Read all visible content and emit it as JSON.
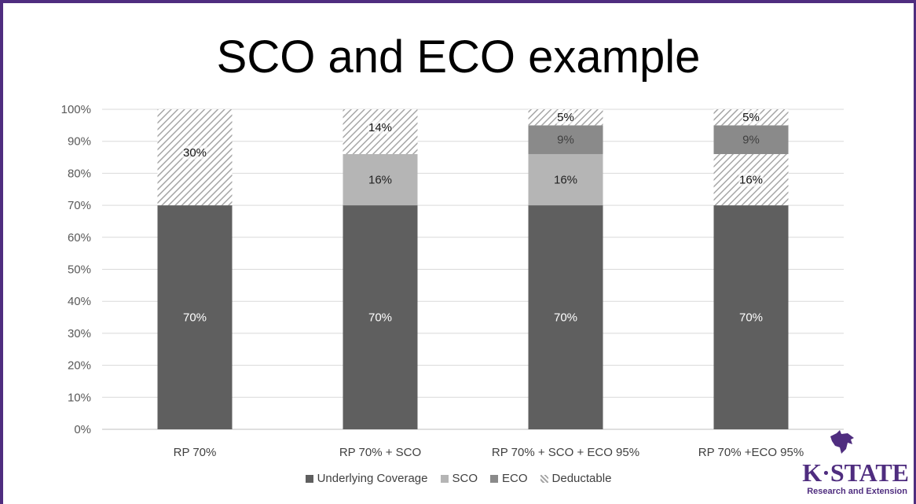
{
  "title": "SCO and ECO example",
  "colors": {
    "underlying": "#5f5f5f",
    "sco": "#b5b5b5",
    "eco": "#8a8a8a",
    "deductable_stripe": "#a6a6a6",
    "brand": "#4f2d7f"
  },
  "chart_data": {
    "type": "bar",
    "stacked": true,
    "categories": [
      "RP 70%",
      "RP 70% + SCO",
      "RP 70% + SCO + ECO 95%",
      "RP 70% +ECO 95%"
    ],
    "series": [
      {
        "name": "Underlying Coverage",
        "values": [
          70,
          70,
          70,
          70
        ],
        "labels": [
          "70%",
          "70%",
          "70%",
          "70%"
        ]
      },
      {
        "name": "SCO",
        "values": [
          0,
          16,
          16,
          0
        ],
        "labels": [
          "",
          "16%",
          "16%",
          ""
        ]
      },
      {
        "name": "ECO",
        "values": [
          0,
          0,
          9,
          9
        ],
        "labels": [
          "",
          "",
          "9%",
          "9%"
        ]
      },
      {
        "name": "Deductable",
        "values": [
          30,
          14,
          5,
          21
        ],
        "labels": [
          "30%",
          "14%",
          "5%",
          [
            "16%",
            "5%"
          ]
        ]
      }
    ],
    "ylim": [
      0,
      100
    ],
    "yticks": [
      "0%",
      "10%",
      "20%",
      "30%",
      "40%",
      "50%",
      "60%",
      "70%",
      "80%",
      "90%",
      "100%"
    ],
    "grid": true,
    "legend_position": "bottom"
  },
  "logo": {
    "word": "K·STATE",
    "sub": "Research and Extension"
  }
}
